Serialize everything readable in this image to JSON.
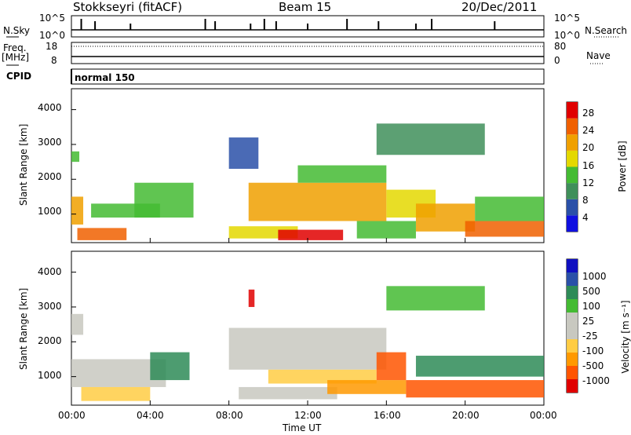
{
  "header": {
    "station": "Stokkseyri (fitACF)",
    "beam": "Beam 15",
    "date": "20/Dec/2011"
  },
  "strip": {
    "nsky_label": "N.Sky",
    "nsky_ticks": [
      "10^5",
      "10^0"
    ],
    "nsearch_label": "N.Search",
    "nsearch_ticks": [
      "10^5",
      "10^0"
    ],
    "freq_label": "Freq.",
    "freq_unit": "[MHz]",
    "freq_ticks": [
      "18",
      "8"
    ],
    "nave_label": "Nave",
    "nave_ticks": [
      "80",
      "0"
    ],
    "cpid_label": "CPID",
    "cpid_value": "normal 150"
  },
  "colors": {
    "power": [
      "#1010e0",
      "#2a50a8",
      "#3f8f5a",
      "#44bb33",
      "#e4d800",
      "#f0a000",
      "#f06000",
      "#e00000"
    ],
    "velocity": [
      "#e00000",
      "#ff5500",
      "#ff9900",
      "#ffcc44",
      "#c8c8c0",
      "#c8c8c0",
      "#44bb33",
      "#2e8b57",
      "#2a50a8",
      "#1010c0"
    ]
  },
  "chart_data": [
    {
      "type": "heatmap",
      "name": "power",
      "ylabel": "Slant Range [km]",
      "yticks": [
        "1000",
        "2000",
        "3000",
        "4000"
      ],
      "ylim": [
        180,
        4600
      ],
      "xlim": [
        0,
        24
      ],
      "colorbar_label": "Power [dB]",
      "colorbar_ticks": [
        "28",
        "24",
        "20",
        "16",
        "12",
        "8",
        "4"
      ],
      "colorbar_range": [
        0,
        32
      ],
      "regions": [
        {
          "t0": 0.0,
          "t1": 0.6,
          "r0": 700,
          "r1": 1500,
          "v": 22
        },
        {
          "t0": 0.3,
          "t1": 2.8,
          "r0": 250,
          "r1": 600,
          "v": 26
        },
        {
          "t0": 1.0,
          "t1": 4.5,
          "r0": 900,
          "r1": 1300,
          "v": 14
        },
        {
          "t0": 3.2,
          "t1": 6.2,
          "r0": 900,
          "r1": 1900,
          "v": 12
        },
        {
          "t0": 0.0,
          "t1": 0.4,
          "r0": 2500,
          "r1": 2800,
          "v": 14
        },
        {
          "t0": 8.0,
          "t1": 11.5,
          "r0": 300,
          "r1": 650,
          "v": 18
        },
        {
          "t0": 10.5,
          "t1": 13.8,
          "r0": 250,
          "r1": 550,
          "v": 28
        },
        {
          "t0": 9.0,
          "t1": 16.0,
          "r0": 800,
          "r1": 1900,
          "v": 22
        },
        {
          "t0": 11.5,
          "t1": 16.0,
          "r0": 1900,
          "r1": 2400,
          "v": 14
        },
        {
          "t0": 14.5,
          "t1": 17.5,
          "r0": 300,
          "r1": 800,
          "v": 14
        },
        {
          "t0": 16.0,
          "t1": 18.5,
          "r0": 900,
          "r1": 1700,
          "v": 18
        },
        {
          "t0": 17.5,
          "t1": 20.5,
          "r0": 500,
          "r1": 1300,
          "v": 22
        },
        {
          "t0": 20.0,
          "t1": 24.0,
          "r0": 350,
          "r1": 800,
          "v": 24
        },
        {
          "t0": 20.5,
          "t1": 24.0,
          "r0": 800,
          "r1": 1500,
          "v": 14
        },
        {
          "t0": 8.0,
          "t1": 9.5,
          "r0": 2300,
          "r1": 3200,
          "v": 6
        },
        {
          "t0": 15.5,
          "t1": 21.0,
          "r0": 2700,
          "r1": 3600,
          "v": 10
        }
      ]
    },
    {
      "type": "heatmap",
      "name": "velocity",
      "ylabel": "Slant Range [km]",
      "yticks": [
        "1000",
        "2000",
        "3000",
        "4000"
      ],
      "ylim": [
        180,
        4600
      ],
      "xlim": [
        0,
        24
      ],
      "xticks": [
        "00:00",
        "04:00",
        "08:00",
        "12:00",
        "16:00",
        "20:00",
        "00:00"
      ],
      "xlabel": "Time UT",
      "colorbar_label": "Velocity [m s⁻¹]",
      "colorbar_ticks": [
        "1000",
        "500",
        "100",
        "25",
        "-25",
        "-100",
        "-500",
        "-1000"
      ],
      "regions": [
        {
          "t0": 0.0,
          "t1": 0.6,
          "r0": 2200,
          "r1": 2800,
          "v": 5
        },
        {
          "t0": 0.0,
          "t1": 4.8,
          "r0": 700,
          "r1": 1500,
          "v": 5
        },
        {
          "t0": 0.5,
          "t1": 4.0,
          "r0": 300,
          "r1": 700,
          "v": 3
        },
        {
          "t0": 4.0,
          "t1": 6.0,
          "r0": 900,
          "r1": 1700,
          "v": 7
        },
        {
          "t0": 8.5,
          "t1": 13.5,
          "r0": 350,
          "r1": 700,
          "v": 4
        },
        {
          "t0": 8.0,
          "t1": 16.0,
          "r0": 1200,
          "r1": 2400,
          "v": 4
        },
        {
          "t0": 10.0,
          "t1": 15.5,
          "r0": 800,
          "r1": 1200,
          "v": 3
        },
        {
          "t0": 13.0,
          "t1": 17.0,
          "r0": 500,
          "r1": 900,
          "v": 2
        },
        {
          "t0": 15.5,
          "t1": 17.0,
          "r0": 900,
          "r1": 1700,
          "v": 1
        },
        {
          "t0": 17.0,
          "t1": 24.0,
          "r0": 400,
          "r1": 900,
          "v": 1
        },
        {
          "t0": 17.5,
          "t1": 24.0,
          "r0": 1000,
          "r1": 1600,
          "v": 7
        },
        {
          "t0": 16.0,
          "t1": 21.0,
          "r0": 2900,
          "r1": 3600,
          "v": 6
        },
        {
          "t0": 9.0,
          "t1": 9.3,
          "r0": 3000,
          "r1": 3500,
          "v": 0
        }
      ]
    }
  ]
}
